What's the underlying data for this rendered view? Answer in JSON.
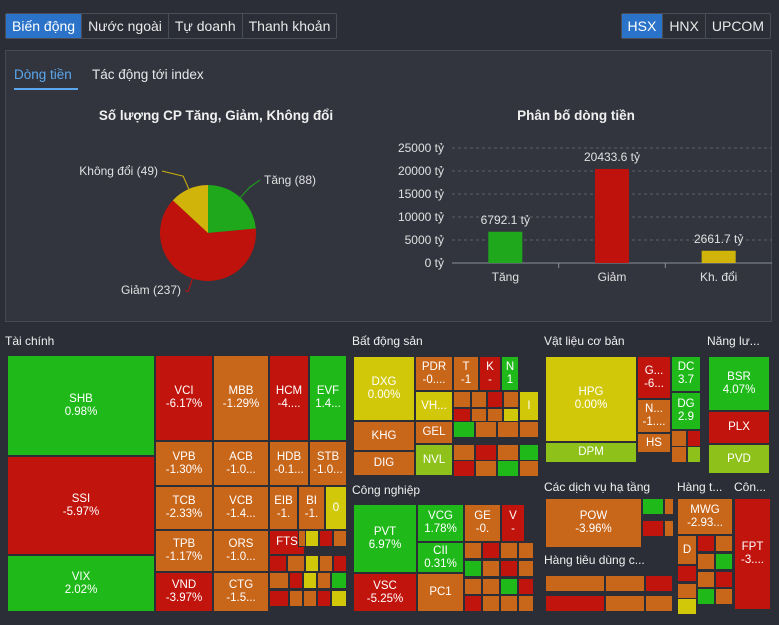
{
  "top_tabs": [
    "Biến động",
    "Nước ngoài",
    "Tự doanh",
    "Thanh khoản"
  ],
  "exchange_tabs": [
    "HSX",
    "HNX",
    "UPCOM"
  ],
  "sub_tabs": [
    "Dòng tiền",
    "Tác động tới index"
  ],
  "colors": {
    "up": "#1fa81c",
    "down": "#c0120c",
    "flat": "#d1b40a",
    "accent": "#2a73c8"
  },
  "chart_data": [
    {
      "type": "pie",
      "title": "Số lượng CP Tăng, Giảm, Không đổi",
      "categories": [
        "Tăng (88)",
        "Giảm (237)",
        "Không đổi (49)"
      ],
      "values": [
        88,
        237,
        49
      ]
    },
    {
      "type": "bar",
      "title": "Phân bố dòng tiền",
      "categories": [
        "Tăng",
        "Giảm",
        "Kh. đổi"
      ],
      "values": [
        6792.1,
        20433.6,
        2661.7
      ],
      "data_labels": [
        "6792.1 tỷ",
        "20433.6 tỷ",
        "2661.7 tỷ"
      ],
      "y_ticks": [
        "0 tỷ",
        "5000 tỷ",
        "10000 tỷ",
        "15000 tỷ",
        "20000 tỷ",
        "25000 tỷ"
      ],
      "ylim": [
        0,
        25000
      ]
    }
  ],
  "treemap": {
    "sectors": [
      "Tài chính",
      "Bất động sản",
      "Vật liệu cơ bản",
      "Năng lư...",
      "Công nghiệp",
      "Các dịch vụ hạ tầng",
      "Hàng t...",
      "Côn...",
      "Hàng tiêu dùng c..."
    ],
    "tiles": [
      {
        "n": "SHB",
        "v": "0.98%"
      },
      {
        "n": "SSI",
        "v": "-5.97%"
      },
      {
        "n": "VIX",
        "v": "2.02%"
      },
      {
        "n": "VCI",
        "v": "-6.17%"
      },
      {
        "n": "MBB",
        "v": "-1.29%"
      },
      {
        "n": "HCM",
        "v": "-4...."
      },
      {
        "n": "EVF",
        "v": "1.4..."
      },
      {
        "n": "VPB",
        "v": "-1.30%"
      },
      {
        "n": "ACB",
        "v": "-1.0..."
      },
      {
        "n": "HDB",
        "v": "-0.1..."
      },
      {
        "n": "STB",
        "v": "-1.0..."
      },
      {
        "n": "TCB",
        "v": "-2.33%"
      },
      {
        "n": "VCB",
        "v": "-1.4..."
      },
      {
        "n": "EIB",
        "v": "-1."
      },
      {
        "n": "BI",
        "v": "-1."
      },
      {
        "n": "0",
        "v": ""
      },
      {
        "n": "TPB",
        "v": "-1.17%"
      },
      {
        "n": "ORS",
        "v": "-1.0..."
      },
      {
        "n": "FTS",
        "v": ""
      },
      {
        "n": "VND",
        "v": "-3.97%"
      },
      {
        "n": "CTG",
        "v": "-1.5..."
      },
      {
        "n": "DXG",
        "v": "0.00%"
      },
      {
        "n": "PDR",
        "v": "-0...."
      },
      {
        "n": "T",
        "v": "-1"
      },
      {
        "n": "K",
        "v": "-"
      },
      {
        "n": "N",
        "v": "1"
      },
      {
        "n": "VH...",
        "v": ""
      },
      {
        "n": "I",
        "v": ""
      },
      {
        "n": "KHG",
        "v": ""
      },
      {
        "n": "GEL",
        "v": ""
      },
      {
        "n": "DIG",
        "v": ""
      },
      {
        "n": "NVL",
        "v": ""
      },
      {
        "n": "HPG",
        "v": "0.00%"
      },
      {
        "n": "G...",
        "v": "-6..."
      },
      {
        "n": "DC",
        "v": "3.7"
      },
      {
        "n": "N...",
        "v": "-1...."
      },
      {
        "n": "DG",
        "v": "2.9"
      },
      {
        "n": "HS",
        "v": ""
      },
      {
        "n": "DPM",
        "v": ""
      },
      {
        "n": "BSR",
        "v": "4.07%"
      },
      {
        "n": "PLX",
        "v": ""
      },
      {
        "n": "PVD",
        "v": ""
      },
      {
        "n": "PVT",
        "v": "6.97%"
      },
      {
        "n": "VCG",
        "v": "1.78%"
      },
      {
        "n": "GE",
        "v": "-0."
      },
      {
        "n": "V",
        "v": "-"
      },
      {
        "n": "CII",
        "v": "0.31%"
      },
      {
        "n": "VSC",
        "v": "-5.25%"
      },
      {
        "n": "PC1",
        "v": ""
      },
      {
        "n": "POW",
        "v": "-3.96%"
      },
      {
        "n": "MWG",
        "v": "-2.93..."
      },
      {
        "n": "D",
        "v": ""
      },
      {
        "n": "FPT",
        "v": "-3...."
      }
    ]
  }
}
